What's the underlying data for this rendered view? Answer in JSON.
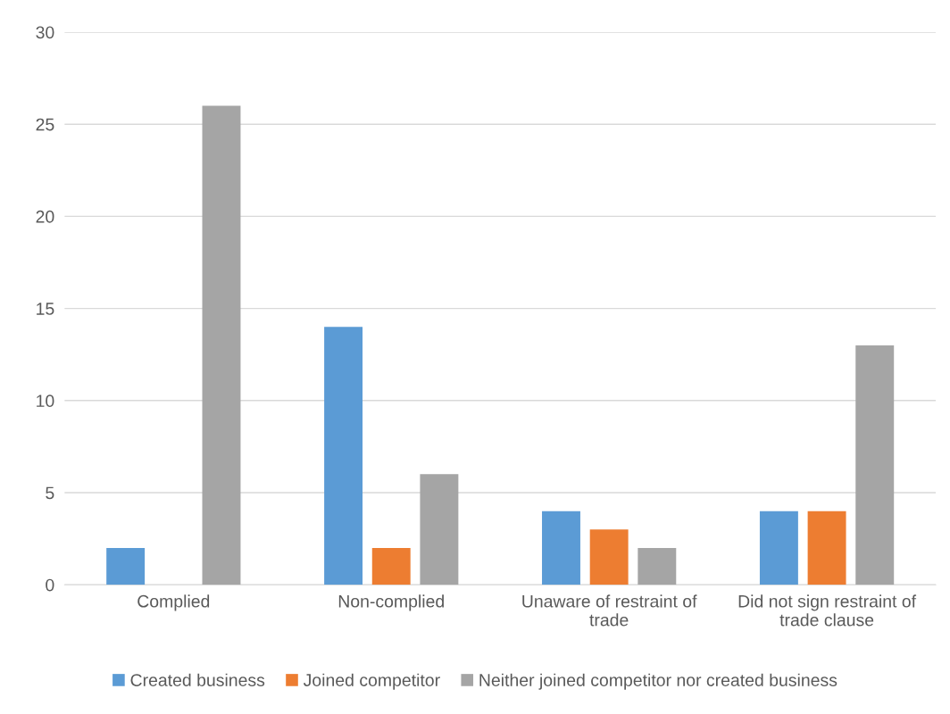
{
  "chart_data": {
    "type": "bar",
    "categories": [
      "Complied",
      "Non-complied",
      "Unaware of restraint of\ntrade",
      "Did not sign restraint of\ntrade clause"
    ],
    "series": [
      {
        "name": "Created business",
        "color": "#5b9bd5",
        "values": [
          2,
          14,
          4,
          4
        ]
      },
      {
        "name": "Joined competitor",
        "color": "#ed7d31",
        "values": [
          0,
          2,
          3,
          4
        ]
      },
      {
        "name": "Neither joined competitor nor created business",
        "color": "#a5a5a5",
        "values": [
          26,
          6,
          2,
          13
        ]
      }
    ],
    "ylim": [
      0,
      30
    ],
    "yticks": [
      0,
      5,
      10,
      15,
      20,
      25,
      30
    ],
    "grid": "y",
    "legend": "bottom"
  }
}
